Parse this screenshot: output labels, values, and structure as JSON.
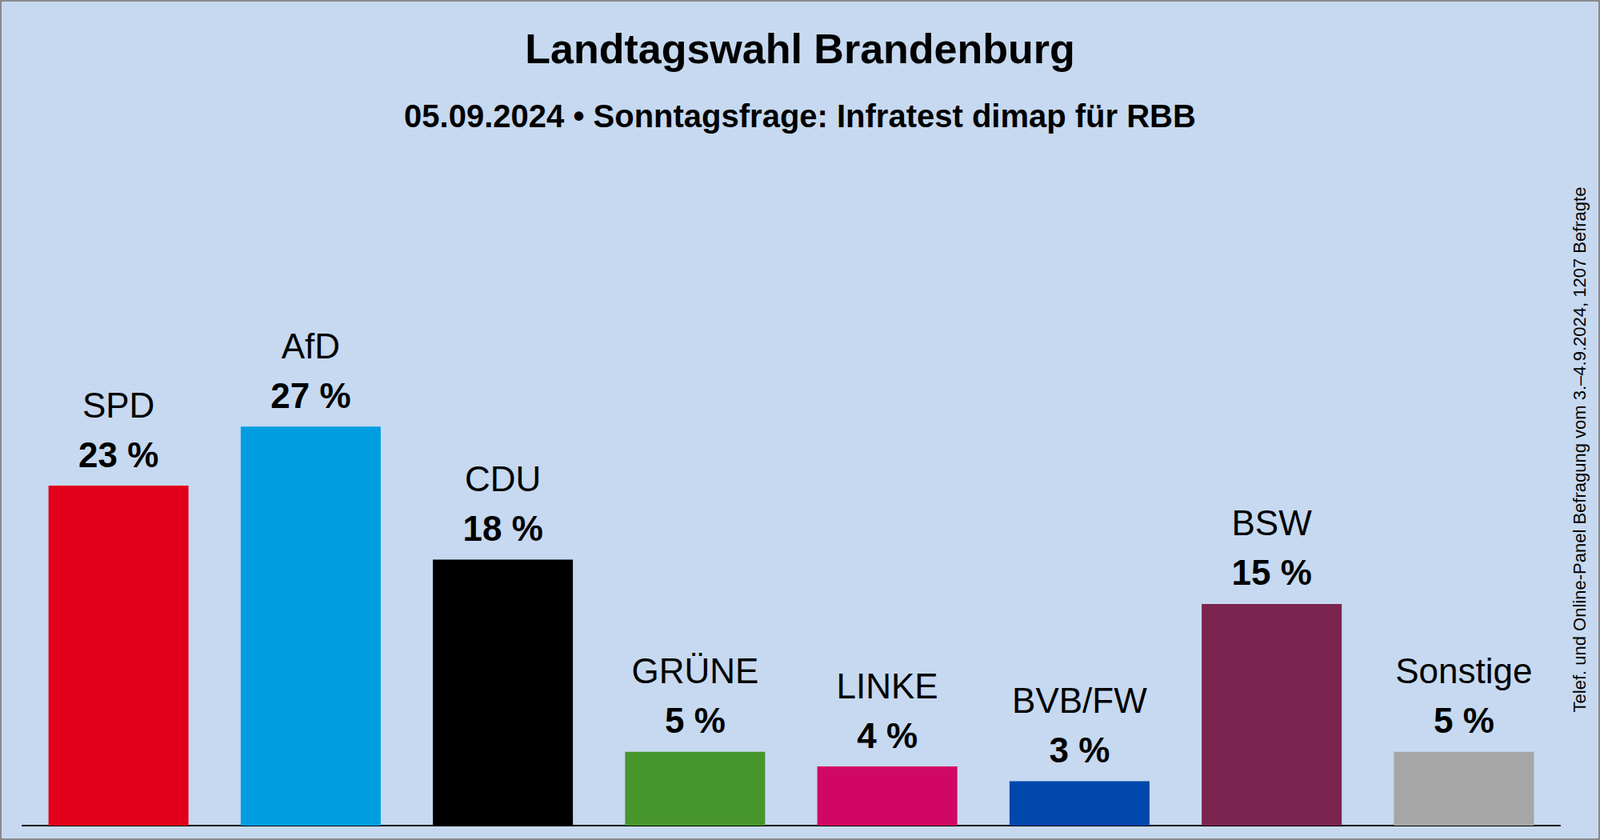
{
  "chart_data": {
    "type": "bar",
    "title": "Landtagswahl Brandenburg",
    "subtitle": "05.09.2024 • Sonntagsfrage: Infratest dimap für RBB",
    "pollster": "Infratest dimap",
    "note": "Telef. und Online-Panel Befragung vom 3.–4.9.2024, 1207 Befragte",
    "categories": [
      "SPD",
      "AfD",
      "CDU",
      "GRÜNE",
      "LINKE",
      "BVB/FW",
      "BSW",
      "Sonstige"
    ],
    "values": [
      23,
      27,
      18,
      5,
      4,
      3,
      15,
      5
    ],
    "value_labels": [
      "23 %",
      "27 %",
      "18 %",
      "5 %",
      "4 %",
      "3 %",
      "15 %",
      "5 %"
    ],
    "colors": [
      "#e3001b",
      "#009ee0",
      "#000000",
      "#46962b",
      "#d10765",
      "#0047ab",
      "#7b2450",
      "#a6a6a6"
    ],
    "ylim": [
      0,
      40
    ],
    "yticks": [
      0,
      10,
      20,
      30,
      40
    ],
    "grid": false,
    "data_labels": true,
    "tick_labels": false
  }
}
